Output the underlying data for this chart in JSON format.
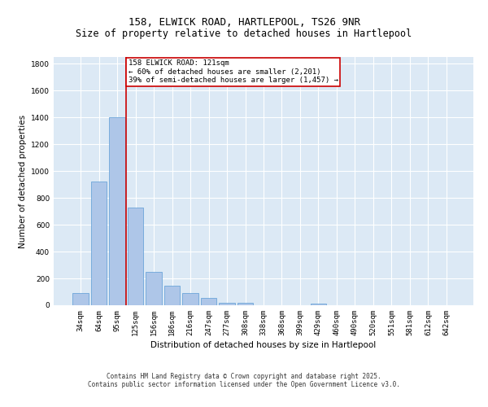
{
  "title_line1": "158, ELWICK ROAD, HARTLEPOOL, TS26 9NR",
  "title_line2": "Size of property relative to detached houses in Hartlepool",
  "xlabel": "Distribution of detached houses by size in Hartlepool",
  "ylabel": "Number of detached properties",
  "categories": [
    "34sqm",
    "64sqm",
    "95sqm",
    "125sqm",
    "156sqm",
    "186sqm",
    "216sqm",
    "247sqm",
    "277sqm",
    "308sqm",
    "338sqm",
    "368sqm",
    "399sqm",
    "429sqm",
    "460sqm",
    "490sqm",
    "520sqm",
    "551sqm",
    "581sqm",
    "612sqm",
    "642sqm"
  ],
  "bar_values": [
    90,
    925,
    1400,
    730,
    250,
    145,
    90,
    55,
    20,
    20,
    0,
    0,
    0,
    10,
    0,
    0,
    0,
    0,
    0,
    0,
    0
  ],
  "bar_color": "#aec6e8",
  "bar_edge_color": "#5b9bd5",
  "vline_color": "#cc0000",
  "annotation_text": "158 ELWICK ROAD: 121sqm\n← 60% of detached houses are smaller (2,201)\n39% of semi-detached houses are larger (1,457) →",
  "annotation_box_color": "#ffffff",
  "annotation_box_edge": "#cc0000",
  "ylim": [
    0,
    1850
  ],
  "yticks": [
    0,
    200,
    400,
    600,
    800,
    1000,
    1200,
    1400,
    1600,
    1800
  ],
  "background_color": "#dce9f5",
  "grid_color": "#ffffff",
  "footer_line1": "Contains HM Land Registry data © Crown copyright and database right 2025.",
  "footer_line2": "Contains public sector information licensed under the Open Government Licence v3.0.",
  "title_fontsize": 9,
  "subtitle_fontsize": 8.5,
  "axis_label_fontsize": 7.5,
  "tick_fontsize": 6.5,
  "annot_fontsize": 6.5,
  "footer_fontsize": 5.5
}
